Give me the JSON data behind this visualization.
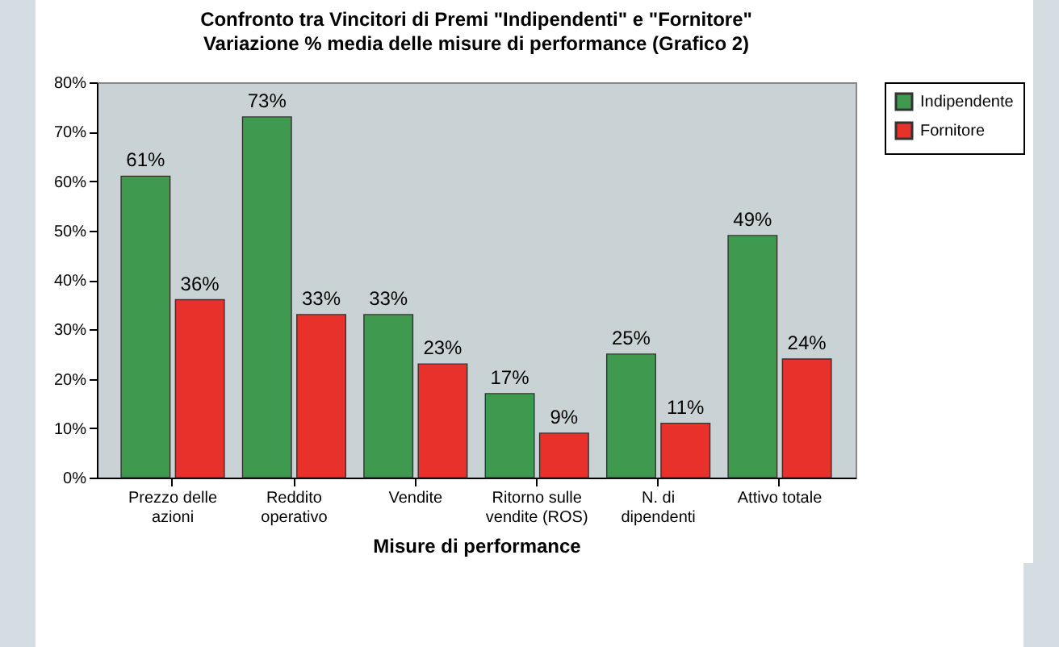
{
  "chart_data": {
    "type": "bar",
    "title": "Confronto tra Vincitori di Premi \"Indipendenti\" e \"Fornitore\"",
    "subtitle": "Variazione % media delle misure di performance (Grafico 2)",
    "xlabel": "Misure di performance",
    "categories": [
      "Prezzo delle azioni",
      "Reddito operativo",
      "Vendite",
      "Ritorno sulle vendite (ROS)",
      "N. di dipendenti",
      "Attivo totale"
    ],
    "series": [
      {
        "name": "Indipendente",
        "color": "#3f9a4f",
        "values": [
          61,
          73,
          33,
          17,
          25,
          49
        ],
        "value_labels": [
          "61%",
          "73%",
          "33%",
          "17%",
          "25%",
          "49%"
        ]
      },
      {
        "name": "Fornitore",
        "color": "#e8312b",
        "values": [
          36,
          33,
          23,
          9,
          11,
          24
        ],
        "value_labels": [
          "36%",
          "33%",
          "23%",
          "9%",
          "11%",
          "24%"
        ]
      }
    ],
    "ylim": [
      0,
      80
    ],
    "yticks": [
      {
        "value": 0,
        "label": "0%"
      },
      {
        "value": 10,
        "label": "10%"
      },
      {
        "value": 20,
        "label": "20%"
      },
      {
        "value": 30,
        "label": "30%"
      },
      {
        "value": 40,
        "label": "40%"
      },
      {
        "value": 50,
        "label": "50%"
      },
      {
        "value": 60,
        "label": "60%"
      },
      {
        "value": 70,
        "label": "70%"
      },
      {
        "value": 80,
        "label": "80%"
      }
    ],
    "grid": false,
    "legend": "top right"
  }
}
